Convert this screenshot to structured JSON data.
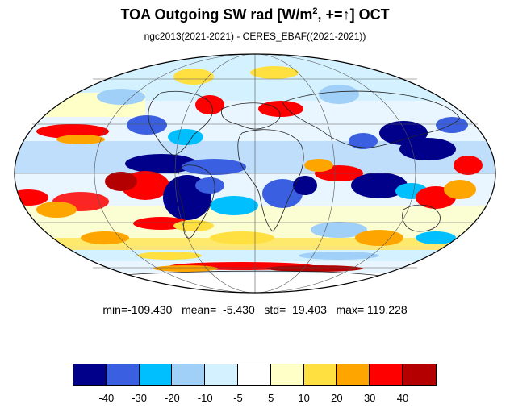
{
  "title": {
    "prefix": "TOA Outgoing SW rad [W/m",
    "sup": "2",
    "suffix": ", +=↑] OCT"
  },
  "subtitle": "ngc2013(2021-2021) - CERES_EBAF((2021-2021))",
  "stats": "min=-109.430   mean=  -5.430   std=  19.403   max= 119.228",
  "colorbar": {
    "colors": [
      "#00008b",
      "#3a5fe0",
      "#00bfff",
      "#a0cff8",
      "#d4f1ff",
      "#ffffff",
      "#ffffc8",
      "#ffe040",
      "#ffa500",
      "#ff0000",
      "#b40000"
    ],
    "labels": [
      "-40",
      "-30",
      "-20",
      "-10",
      "-5",
      "5",
      "10",
      "20",
      "30",
      "40"
    ]
  }
}
